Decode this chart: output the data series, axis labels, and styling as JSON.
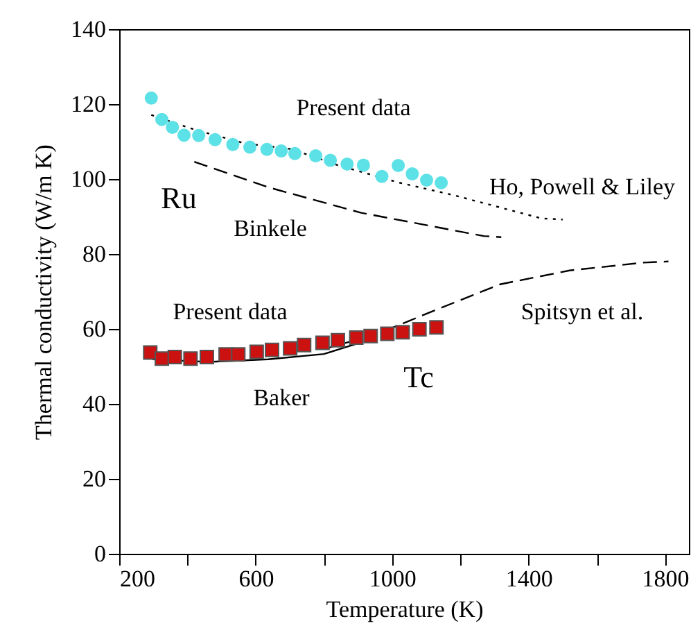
{
  "chart_data": {
    "type": "scatter",
    "xlabel": "Temperature   (K)",
    "ylabel": "Thermal conductivity   (W/m K)",
    "xlim": [
      200,
      1870
    ],
    "xticks": [
      200,
      {
        "value": 400,
        "label": null
      },
      600,
      {
        "value": 800,
        "label": null
      },
      1000,
      {
        "value": 1200,
        "label": null
      },
      1400,
      {
        "value": 1600,
        "label": null
      },
      1800
    ],
    "ylim": [
      0,
      140
    ],
    "yticks": [
      0,
      20,
      40,
      60,
      80,
      100,
      120,
      140
    ],
    "grid": false,
    "series": [
      {
        "type": "line",
        "name": "Ho, Powell & Liley",
        "color": "#000000",
        "line_style": "dotted",
        "x": [
          294,
          420,
          569,
          705,
          841,
          1018,
          1180,
          1438,
          1500
        ],
        "values": [
          117.1,
          113.2,
          109.5,
          108.0,
          103.7,
          99.1,
          95.7,
          89.5,
          89.2
        ]
      },
      {
        "type": "line",
        "name": "Binkele",
        "color": "#000000",
        "line_style": "dashed",
        "x": [
          420,
          637,
          909,
          1268,
          1320
        ],
        "values": [
          104.6,
          97.8,
          91.0,
          84.8,
          84.5
        ]
      },
      {
        "type": "line",
        "name": "Baker",
        "color": "#000000",
        "line_style": "solid",
        "x": [
          298,
          461,
          637,
          800,
          909
        ],
        "values": [
          51.9,
          51.2,
          51.9,
          53.3,
          56.4
        ]
      },
      {
        "type": "line",
        "name": "Spitsyn et al.",
        "color": "#000000",
        "line_style": "dashed",
        "x": [
          800,
          963,
          1126,
          1316,
          1520,
          1737,
          1810
        ],
        "values": [
          54.6,
          58.9,
          65.0,
          71.9,
          75.6,
          77.7,
          78.0
        ]
      },
      {
        "name": "Present data",
        "color": "#5ce1e6",
        "marker": "circle",
        "x": [
          294,
          325,
          356,
          390,
          433,
          481,
          533,
          583,
          633,
          675,
          715,
          776,
          819,
          868,
          916,
          970,
          1018,
          1059,
          1101,
          1144
        ],
        "values": [
          121.6,
          115.9,
          113.8,
          111.7,
          111.6,
          110.5,
          109.2,
          108.5,
          107.9,
          107.5,
          106.8,
          106.2,
          105.0,
          104.0,
          103.7,
          100.7,
          103.6,
          101.4,
          99.7,
          99.0
        ]
      },
      {
        "name": "Present data",
        "color": "#cc1111",
        "marker": "square",
        "x": [
          291,
          325,
          363,
          409,
          457,
          512,
          549,
          603,
          648,
          701,
          742,
          796,
          841,
          895,
          937,
          986,
          1031,
          1080,
          1130
        ],
        "values": [
          53.7,
          52.1,
          52.5,
          52.1,
          52.5,
          53.2,
          53.2,
          53.9,
          54.4,
          54.8,
          55.7,
          56.3,
          57.0,
          57.7,
          58.1,
          58.7,
          59.1,
          59.9,
          60.4
        ]
      }
    ],
    "annotations": [
      "Ru",
      "Tc"
    ]
  }
}
